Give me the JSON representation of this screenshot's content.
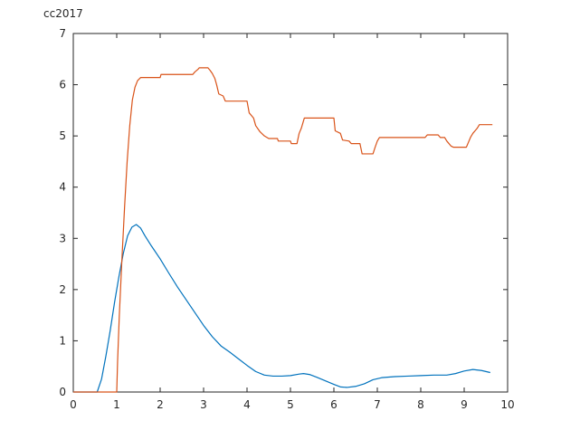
{
  "chart_data": {
    "type": "line",
    "corner_label": "cc2017",
    "title": "",
    "xlabel": "",
    "ylabel": "",
    "xlim": [
      0,
      10
    ],
    "ylim": [
      0,
      7
    ],
    "grid": false,
    "x_ticks": [
      "0",
      "1",
      "2",
      "3",
      "4",
      "5",
      "6",
      "7",
      "8",
      "9",
      "10"
    ],
    "y_ticks": [
      "0",
      "1",
      "2",
      "3",
      "4",
      "5",
      "6",
      "7"
    ],
    "colors": {
      "series1": "#0072bd",
      "series2": "#d95319",
      "axes": "#262626"
    },
    "series": [
      {
        "points": [
          [
            0.0,
            0.0
          ],
          [
            0.55,
            0.0
          ],
          [
            0.65,
            0.25
          ],
          [
            0.75,
            0.7
          ],
          [
            0.85,
            1.2
          ],
          [
            0.95,
            1.75
          ],
          [
            1.05,
            2.25
          ],
          [
            1.15,
            2.7
          ],
          [
            1.25,
            3.05
          ],
          [
            1.35,
            3.22
          ],
          [
            1.45,
            3.27
          ],
          [
            1.55,
            3.2
          ],
          [
            1.65,
            3.05
          ],
          [
            1.8,
            2.85
          ],
          [
            2.0,
            2.6
          ],
          [
            2.2,
            2.32
          ],
          [
            2.4,
            2.05
          ],
          [
            2.6,
            1.8
          ],
          [
            2.8,
            1.55
          ],
          [
            3.0,
            1.3
          ],
          [
            3.2,
            1.08
          ],
          [
            3.4,
            0.9
          ],
          [
            3.6,
            0.78
          ],
          [
            3.8,
            0.65
          ],
          [
            4.0,
            0.52
          ],
          [
            4.2,
            0.4
          ],
          [
            4.4,
            0.33
          ],
          [
            4.6,
            0.31
          ],
          [
            4.8,
            0.31
          ],
          [
            5.0,
            0.32
          ],
          [
            5.2,
            0.35
          ],
          [
            5.3,
            0.36
          ],
          [
            5.45,
            0.34
          ],
          [
            5.6,
            0.29
          ],
          [
            5.8,
            0.22
          ],
          [
            6.0,
            0.15
          ],
          [
            6.15,
            0.1
          ],
          [
            6.3,
            0.09
          ],
          [
            6.5,
            0.11
          ],
          [
            6.7,
            0.16
          ],
          [
            6.9,
            0.24
          ],
          [
            7.1,
            0.28
          ],
          [
            7.4,
            0.3
          ],
          [
            7.7,
            0.31
          ],
          [
            8.0,
            0.32
          ],
          [
            8.3,
            0.33
          ],
          [
            8.6,
            0.33
          ],
          [
            8.8,
            0.36
          ],
          [
            9.0,
            0.41
          ],
          [
            9.2,
            0.44
          ],
          [
            9.4,
            0.42
          ],
          [
            9.6,
            0.38
          ]
        ]
      },
      {
        "points": [
          [
            0.0,
            0.0
          ],
          [
            1.0,
            0.0
          ],
          [
            1.02,
            0.6
          ],
          [
            1.06,
            1.5
          ],
          [
            1.12,
            2.6
          ],
          [
            1.18,
            3.6
          ],
          [
            1.24,
            4.5
          ],
          [
            1.3,
            5.2
          ],
          [
            1.36,
            5.7
          ],
          [
            1.42,
            5.95
          ],
          [
            1.48,
            6.08
          ],
          [
            1.55,
            6.14
          ],
          [
            2.0,
            6.14
          ],
          [
            2.02,
            6.2
          ],
          [
            2.75,
            6.2
          ],
          [
            2.8,
            6.25
          ],
          [
            2.87,
            6.3
          ],
          [
            2.9,
            6.33
          ],
          [
            3.1,
            6.33
          ],
          [
            3.15,
            6.28
          ],
          [
            3.2,
            6.22
          ],
          [
            3.26,
            6.12
          ],
          [
            3.3,
            6.0
          ],
          [
            3.35,
            5.82
          ],
          [
            3.45,
            5.78
          ],
          [
            3.5,
            5.68
          ],
          [
            4.0,
            5.68
          ],
          [
            4.05,
            5.45
          ],
          [
            4.15,
            5.35
          ],
          [
            4.2,
            5.2
          ],
          [
            4.3,
            5.08
          ],
          [
            4.4,
            5.0
          ],
          [
            4.5,
            4.95
          ],
          [
            4.7,
            4.95
          ],
          [
            4.72,
            4.9
          ],
          [
            5.0,
            4.9
          ],
          [
            5.02,
            4.85
          ],
          [
            5.15,
            4.85
          ],
          [
            5.2,
            5.05
          ],
          [
            5.25,
            5.15
          ],
          [
            5.32,
            5.35
          ],
          [
            6.0,
            5.35
          ],
          [
            6.03,
            5.1
          ],
          [
            6.15,
            5.05
          ],
          [
            6.2,
            4.92
          ],
          [
            6.35,
            4.9
          ],
          [
            6.4,
            4.85
          ],
          [
            6.6,
            4.85
          ],
          [
            6.65,
            4.65
          ],
          [
            6.9,
            4.65
          ],
          [
            6.95,
            4.78
          ],
          [
            7.0,
            4.9
          ],
          [
            7.05,
            4.97
          ],
          [
            8.1,
            4.97
          ],
          [
            8.15,
            5.02
          ],
          [
            8.4,
            5.02
          ],
          [
            8.45,
            4.97
          ],
          [
            8.55,
            4.97
          ],
          [
            8.6,
            4.9
          ],
          [
            8.7,
            4.8
          ],
          [
            8.75,
            4.78
          ],
          [
            9.05,
            4.78
          ],
          [
            9.1,
            4.88
          ],
          [
            9.15,
            4.98
          ],
          [
            9.2,
            5.05
          ],
          [
            9.25,
            5.1
          ],
          [
            9.3,
            5.15
          ],
          [
            9.35,
            5.22
          ],
          [
            9.65,
            5.22
          ]
        ]
      }
    ]
  }
}
